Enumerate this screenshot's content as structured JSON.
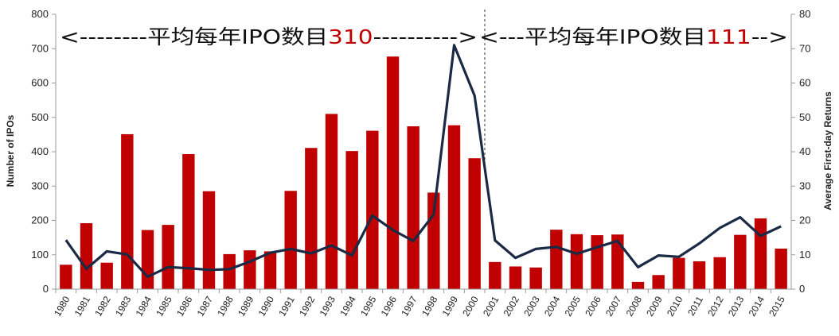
{
  "chart_data": {
    "type": "bar",
    "categories": [
      "1980",
      "1981",
      "1982",
      "1983",
      "1984",
      "1985",
      "1986",
      "1987",
      "1988",
      "1989",
      "1990",
      "1991",
      "1992",
      "1993",
      "1994",
      "1995",
      "1996",
      "1997",
      "1998",
      "1999",
      "2000",
      "2001",
      "2002",
      "2003",
      "2004",
      "2005",
      "2006",
      "2007",
      "2008",
      "2009",
      "2010",
      "2011",
      "2012",
      "2013",
      "2014",
      "2015"
    ],
    "series": [
      {
        "type": "bar",
        "axis": "left",
        "color": "#c00000",
        "values": [
          71,
          192,
          77,
          451,
          172,
          187,
          393,
          285,
          102,
          113,
          110,
          286,
          411,
          510,
          402,
          461,
          677,
          474,
          281,
          477,
          381,
          79,
          66,
          63,
          173,
          160,
          157,
          159,
          21,
          41,
          91,
          81,
          93,
          158,
          206,
          118
        ]
      },
      {
        "type": "line",
        "axis": "right",
        "color": "#1a2a45",
        "values": [
          14.3,
          5.9,
          11.0,
          10.1,
          3.6,
          6.4,
          6.1,
          5.6,
          5.8,
          8.0,
          10.6,
          11.7,
          10.4,
          12.7,
          9.8,
          21.4,
          17.2,
          14.0,
          21.7,
          71.0,
          56.3,
          14.2,
          9.1,
          11.7,
          12.3,
          10.3,
          12.2,
          14.0,
          6.4,
          9.8,
          9.4,
          13.3,
          17.8,
          20.9,
          15.5,
          18.3
        ]
      }
    ],
    "ylabel": "Number of IPOs",
    "ylabel_right": "Average First-day Returns",
    "ylim": [
      0,
      800
    ],
    "ylim_right": [
      0,
      80
    ],
    "yticks": [
      "0",
      "100",
      "200",
      "300",
      "400",
      "500",
      "600",
      "700",
      "800"
    ],
    "yticks_right": [
      "0",
      "10",
      "20",
      "30",
      "40",
      "50",
      "60",
      "70",
      "80"
    ],
    "grid": false,
    "annotations": {
      "left": {
        "prefix": "<--------平均每年IPO数目",
        "number": "310",
        "suffix": "---------->"
      },
      "right": {
        "prefix": "<---平均每年IPO数目",
        "number": "111",
        "suffix": "-->"
      },
      "divider_after": "2000"
    }
  }
}
